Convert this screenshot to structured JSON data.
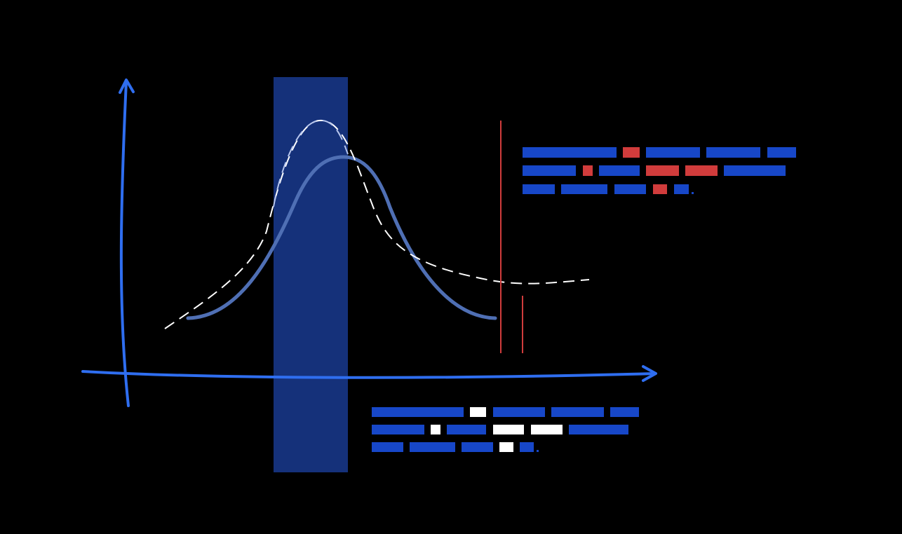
{
  "colors": {
    "background": "#000000",
    "axis": "#2f6ef0",
    "band": "#15317a",
    "solid_curve": "#4f6fb4",
    "dashed_curve": "#ffffff",
    "dashed_curve_over_band": "#b7c6ee",
    "marker_line": "#d13c3c",
    "text_block": "#1747c8",
    "highlight_red": "#d13c3c",
    "highlight_white": "#ffffff"
  },
  "icons": {
    "y_axis_arrow": "arrow-up-icon",
    "x_axis_arrow": "arrow-right-icon"
  }
}
